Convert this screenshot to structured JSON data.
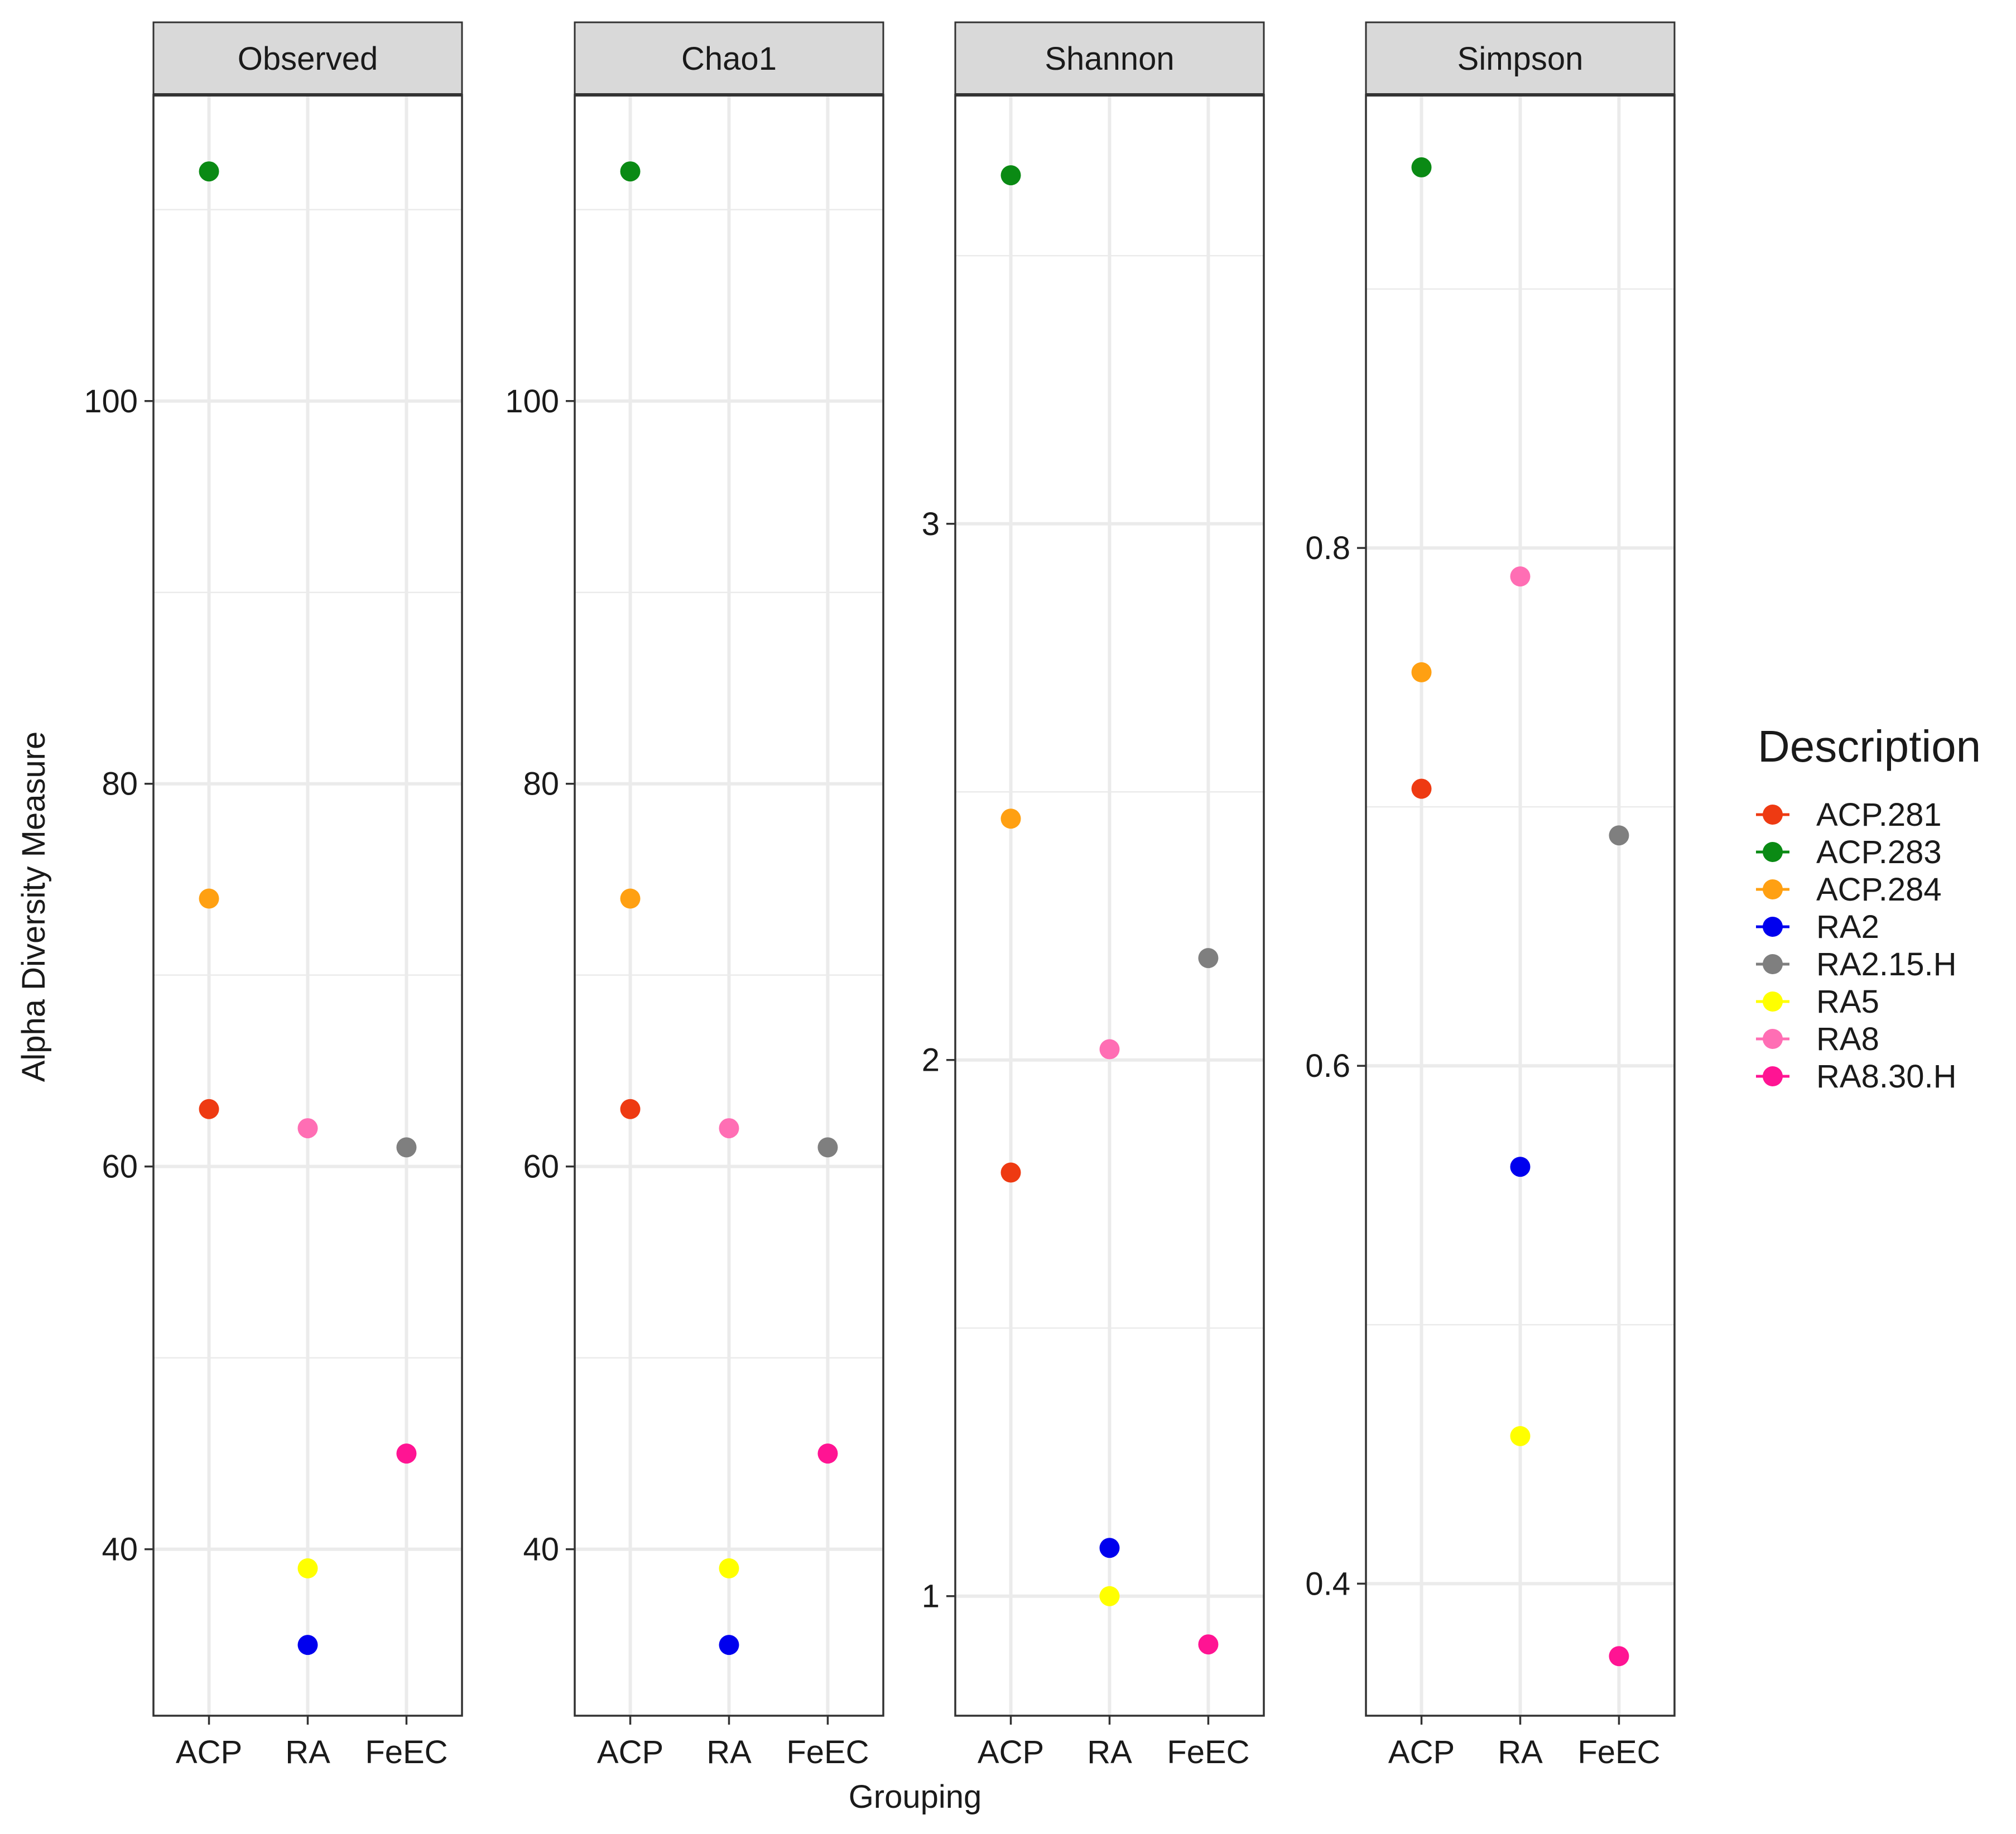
{
  "chart_data": {
    "type": "scatter",
    "xlabel": "Grouping",
    "ylabel": "Alpha Diversity Measure",
    "categories": [
      "ACP",
      "RA",
      "FeEC"
    ],
    "legend": {
      "title": "Description",
      "placement": "right",
      "entries": [
        {
          "name": "ACP.281",
          "color": "#ee3a12"
        },
        {
          "name": "ACP.283",
          "color": "#0a8a14"
        },
        {
          "name": "ACP.284",
          "color": "#ffa012"
        },
        {
          "name": "RA2",
          "color": "#0000ee"
        },
        {
          "name": "RA2.15.H",
          "color": "#7f7f7f"
        },
        {
          "name": "RA5",
          "color": "#ffff00"
        },
        {
          "name": "RA8",
          "color": "#ff6eb4"
        },
        {
          "name": "RA8.30.H",
          "color": "#ff1493"
        }
      ]
    },
    "panels": [
      {
        "title": "Observed",
        "ylim": [
          31.3,
          116.0
        ],
        "major_ticks": [
          40,
          60,
          80,
          100
        ],
        "tick_labels": [
          "40",
          "60",
          "80",
          "100"
        ],
        "minor_ticks": [
          50,
          70,
          90,
          110
        ],
        "points": [
          {
            "sample": "ACP.281",
            "group": "ACP",
            "value": 63
          },
          {
            "sample": "ACP.283",
            "group": "ACP",
            "value": 112
          },
          {
            "sample": "ACP.284",
            "group": "ACP",
            "value": 74
          },
          {
            "sample": "RA2",
            "group": "RA",
            "value": 35
          },
          {
            "sample": "RA5",
            "group": "RA",
            "value": 39
          },
          {
            "sample": "RA8",
            "group": "RA",
            "value": 62
          },
          {
            "sample": "RA2.15.H",
            "group": "FeEC",
            "value": 61
          },
          {
            "sample": "RA8.30.H",
            "group": "FeEC",
            "value": 45
          }
        ]
      },
      {
        "title": "Chao1",
        "ylim": [
          31.3,
          116.0
        ],
        "major_ticks": [
          40,
          60,
          80,
          100
        ],
        "tick_labels": [
          "40",
          "60",
          "80",
          "100"
        ],
        "minor_ticks": [
          50,
          70,
          90,
          110
        ],
        "points": [
          {
            "sample": "ACP.281",
            "group": "ACP",
            "value": 63
          },
          {
            "sample": "ACP.283",
            "group": "ACP",
            "value": 112
          },
          {
            "sample": "ACP.284",
            "group": "ACP",
            "value": 74
          },
          {
            "sample": "RA2",
            "group": "RA",
            "value": 35
          },
          {
            "sample": "RA5",
            "group": "RA",
            "value": 39
          },
          {
            "sample": "RA8",
            "group": "RA",
            "value": 62
          },
          {
            "sample": "RA2.15.H",
            "group": "FeEC",
            "value": 61
          },
          {
            "sample": "RA8.30.H",
            "group": "FeEC",
            "value": 45
          }
        ]
      },
      {
        "title": "Shannon",
        "ylim": [
          0.777,
          3.8
        ],
        "major_ticks": [
          1,
          2,
          3
        ],
        "tick_labels": [
          "1",
          "2",
          "3"
        ],
        "minor_ticks": [
          1.5,
          2.5,
          3.5
        ],
        "points": [
          {
            "sample": "ACP.281",
            "group": "ACP",
            "value": 1.79
          },
          {
            "sample": "ACP.283",
            "group": "ACP",
            "value": 3.65
          },
          {
            "sample": "ACP.284",
            "group": "ACP",
            "value": 2.45
          },
          {
            "sample": "RA2",
            "group": "RA",
            "value": 1.09
          },
          {
            "sample": "RA5",
            "group": "RA",
            "value": 1.0
          },
          {
            "sample": "RA8",
            "group": "RA",
            "value": 2.02
          },
          {
            "sample": "RA2.15.H",
            "group": "FeEC",
            "value": 2.19
          },
          {
            "sample": "RA8.30.H",
            "group": "FeEC",
            "value": 0.91
          }
        ]
      },
      {
        "title": "Simpson",
        "ylim": [
          0.349,
          0.975
        ],
        "major_ticks": [
          0.4,
          0.6,
          0.8
        ],
        "tick_labels": [
          "0.4",
          "0.6",
          "0.8"
        ],
        "minor_ticks": [
          0.5,
          0.7,
          0.9
        ],
        "points": [
          {
            "sample": "ACP.281",
            "group": "ACP",
            "value": 0.707
          },
          {
            "sample": "ACP.283",
            "group": "ACP",
            "value": 0.947
          },
          {
            "sample": "ACP.284",
            "group": "ACP",
            "value": 0.752
          },
          {
            "sample": "RA2",
            "group": "RA",
            "value": 0.561
          },
          {
            "sample": "RA5",
            "group": "RA",
            "value": 0.457
          },
          {
            "sample": "RA8",
            "group": "RA",
            "value": 0.789
          },
          {
            "sample": "RA2.15.H",
            "group": "FeEC",
            "value": 0.689
          },
          {
            "sample": "RA8.30.H",
            "group": "FeEC",
            "value": 0.372
          }
        ]
      }
    ]
  }
}
